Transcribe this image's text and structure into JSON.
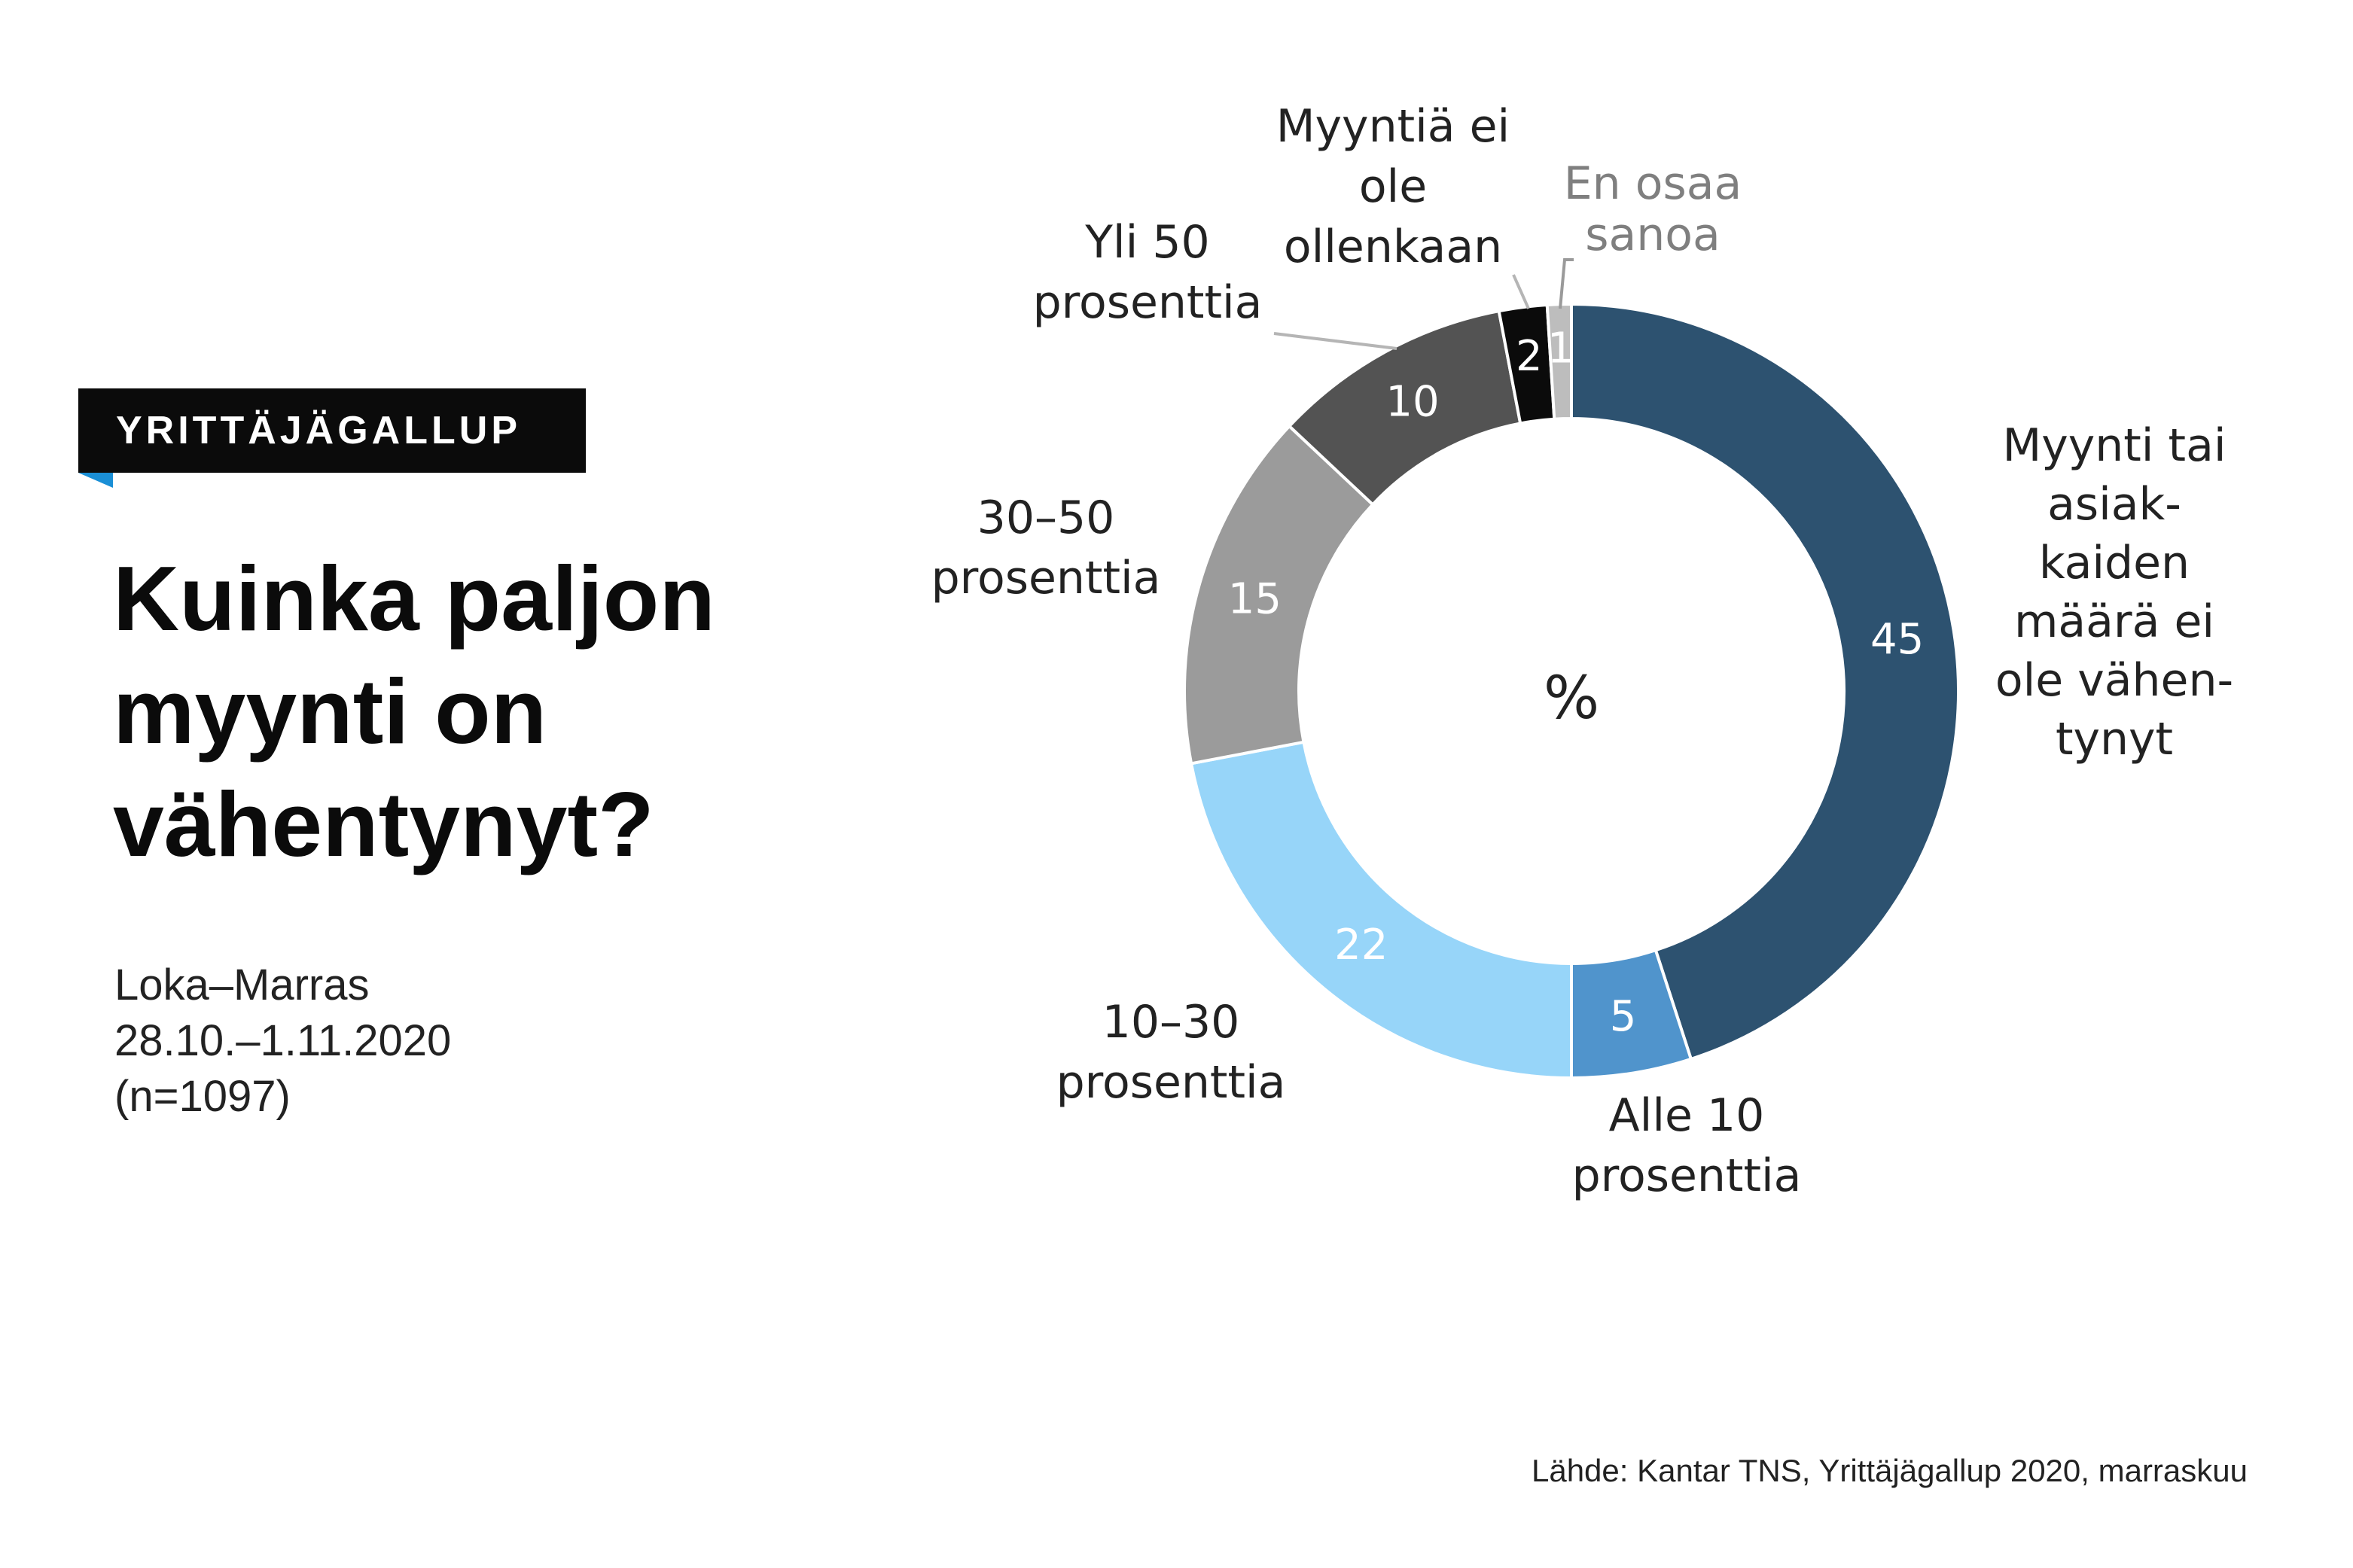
{
  "badge": {
    "label": "YRITTÄJÄGALLUP"
  },
  "headline": {
    "lines": [
      "Kuinka paljon",
      "myynti on",
      "vähentynyt?"
    ]
  },
  "meta": {
    "period": "Loka–Marras",
    "dates": "28.10.–1.11.2020",
    "sample": "(n=1097)"
  },
  "source": "Lähde: Kantar TNS, Yrittäjägallup 2020, marraskuu",
  "chart_data": {
    "type": "pie",
    "donut": true,
    "center_label": "%",
    "start": "12 o'clock, clockwise",
    "slices": [
      {
        "label_lines": [
          "Myynti tai",
          "asiak-",
          "kaiden",
          "määrä ei",
          "ole vähen-",
          "tynyt"
        ],
        "value": 45,
        "color": "#2d5270"
      },
      {
        "label_lines": [
          "Alle 10",
          "prosenttia"
        ],
        "value": 5,
        "color": "#5094cc"
      },
      {
        "label_lines": [
          "10–30",
          "prosenttia"
        ],
        "value": 22,
        "color": "#97d5f9"
      },
      {
        "label_lines": [
          "30–50",
          "prosenttia"
        ],
        "value": 15,
        "color": "#9b9b9b"
      },
      {
        "label_lines": [
          "Yli 50",
          "prosenttia"
        ],
        "value": 10,
        "color": "#535353"
      },
      {
        "label_lines": [
          "Myyntiä ei",
          "ole",
          "ollenkaan"
        ],
        "value": 2,
        "color": "#0b0b0b"
      },
      {
        "label_lines": [
          "En osaa",
          "sanoa"
        ],
        "value": 1,
        "color": "#bdbdbd",
        "label_color": "#7f7f7f"
      }
    ]
  }
}
